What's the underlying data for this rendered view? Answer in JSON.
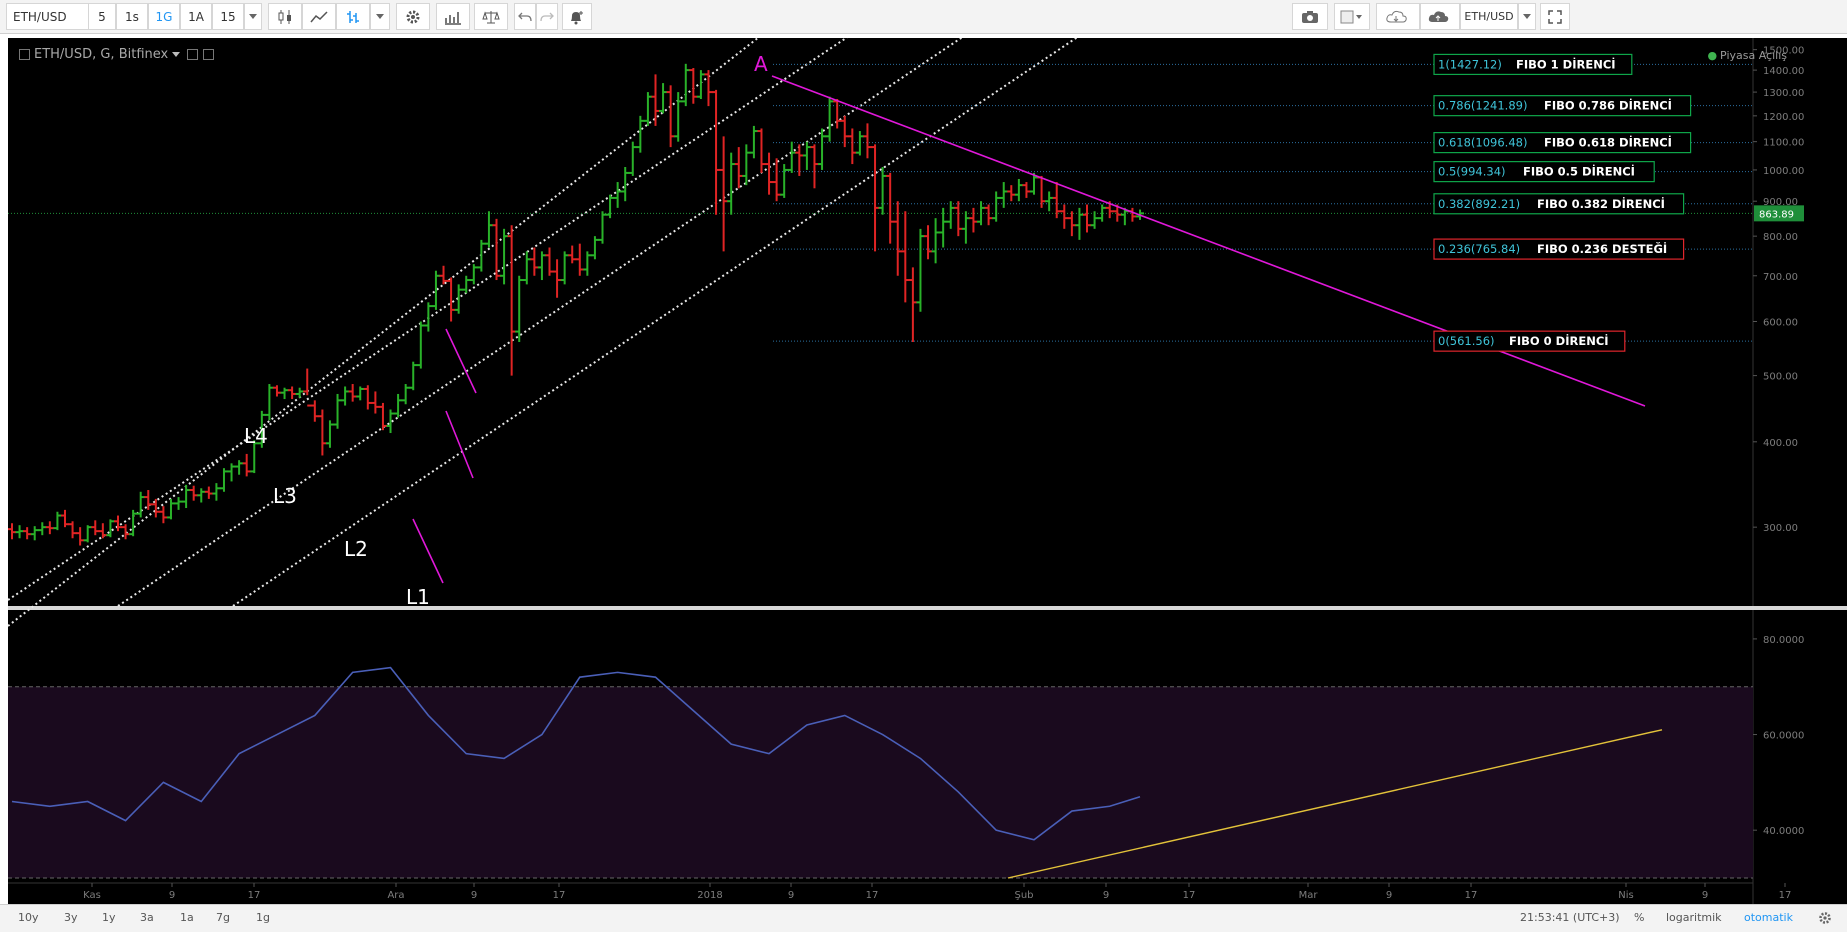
{
  "toolbar": {
    "symbol": "ETH/USD",
    "intervals": [
      "5",
      "1s",
      "1G",
      "1A",
      "15"
    ],
    "active_interval": "1G",
    "right_symbol": "ETH/USD"
  },
  "chart": {
    "legend": "ETH/USD, G, Bitfinex",
    "status": "Piyasa Açılış",
    "last_price_label": "863.89",
    "last_price": 863.89,
    "y_ticks": [
      "1500.00",
      "1400.00",
      "1300.00",
      "1200.00",
      "1100.00",
      "1000.00",
      "900.00",
      "800.00",
      "700.00",
      "600.00",
      "500.00",
      "400.00",
      "300.00"
    ],
    "rsi_ticks": [
      "80.0000",
      "60.0000",
      "40.0000"
    ],
    "x_ticks": [
      "Kas",
      "9",
      "17",
      "Ara",
      "9",
      "17",
      "2018",
      "9",
      "17",
      "Şub",
      "9",
      "17",
      "Mar",
      "9",
      "17",
      "Nis",
      "9",
      "17"
    ],
    "labels": {
      "a": "A",
      "l1": "L1",
      "l2": "L2",
      "l3": "L3",
      "l4": "L4"
    },
    "fib_levels": [
      {
        "ratio": "1",
        "value": 1427.12,
        "value_label": "1(1427.12)",
        "text": "FIBO 1 DİRENCİ",
        "color": "#0fa64a"
      },
      {
        "ratio": "0.786",
        "value": 1241.89,
        "value_label": "0.786(1241.89)",
        "text": "FIBO 0.786 DİRENCİ",
        "color": "#0fa64a"
      },
      {
        "ratio": "0.618",
        "value": 1096.48,
        "value_label": "0.618(1096.48)",
        "text": "FIBO 0.618 DİRENCİ",
        "color": "#0fa64a"
      },
      {
        "ratio": "0.5",
        "value": 994.34,
        "value_label": "0.5(994.34)",
        "text": "FIBO 0.5 DİRENCİ",
        "color": "#0fa64a"
      },
      {
        "ratio": "0.382",
        "value": 892.21,
        "value_label": "0.382(892.21)",
        "text": "FIBO 0.382 DİRENCİ",
        "color": "#0fa64a"
      },
      {
        "ratio": "0.236",
        "value": 765.84,
        "value_label": "0.236(765.84)",
        "text": "FIBO 0.236 DESTEĞİ",
        "color": "#e0262c"
      },
      {
        "ratio": "0",
        "value": 561.56,
        "value_label": "0(561.56)",
        "text": "FIBO 0 DİRENCİ",
        "color": "#e0262c"
      }
    ]
  },
  "chart_data": [
    {
      "type": "ohlc",
      "y_scale": "log",
      "ylim": [
        230,
        1560
      ],
      "x_count": 158,
      "bars": [
        [
          0,
          298,
          304,
          288,
          295
        ],
        [
          1,
          295,
          302,
          289,
          296
        ],
        [
          2,
          296,
          300,
          288,
          293
        ],
        [
          3,
          293,
          301,
          287,
          297
        ],
        [
          4,
          297,
          305,
          292,
          300
        ],
        [
          5,
          300,
          306,
          293,
          299
        ],
        [
          6,
          299,
          316,
          297,
          312
        ],
        [
          7,
          312,
          318,
          300,
          303
        ],
        [
          8,
          303,
          306,
          289,
          294
        ],
        [
          9,
          294,
          300,
          282,
          287
        ],
        [
          10,
          287,
          302,
          285,
          300
        ],
        [
          11,
          300,
          307,
          292,
          296
        ],
        [
          12,
          296,
          304,
          289,
          292
        ],
        [
          13,
          292,
          308,
          290,
          306
        ],
        [
          14,
          306,
          312,
          296,
          300
        ],
        [
          15,
          300,
          303,
          288,
          293
        ],
        [
          16,
          293,
          318,
          291,
          314
        ],
        [
          17,
          314,
          338,
          310,
          332
        ],
        [
          18,
          332,
          340,
          318,
          324
        ],
        [
          19,
          324,
          330,
          310,
          316
        ],
        [
          20,
          316,
          322,
          304,
          310
        ],
        [
          21,
          310,
          330,
          308,
          325
        ],
        [
          22,
          325,
          332,
          318,
          327
        ],
        [
          23,
          327,
          346,
          320,
          340
        ],
        [
          24,
          340,
          345,
          328,
          334
        ],
        [
          25,
          334,
          342,
          326,
          338
        ],
        [
          26,
          338,
          344,
          330,
          336
        ],
        [
          27,
          336,
          348,
          328,
          342
        ],
        [
          28,
          342,
          366,
          338,
          362
        ],
        [
          29,
          362,
          372,
          350,
          368
        ],
        [
          30,
          368,
          376,
          358,
          372
        ],
        [
          31,
          372,
          384,
          356,
          362
        ],
        [
          32,
          362,
          402,
          360,
          398
        ],
        [
          33,
          398,
          444,
          392,
          438
        ],
        [
          34,
          438,
          486,
          430,
          480
        ],
        [
          35,
          480,
          484,
          466,
          472
        ],
        [
          36,
          472,
          480,
          462,
          476
        ],
        [
          37,
          476,
          482,
          462,
          470
        ],
        [
          38,
          470,
          480,
          464,
          474
        ],
        [
          39,
          474,
          512,
          468,
          452
        ],
        [
          40,
          452,
          460,
          428,
          436
        ],
        [
          41,
          436,
          446,
          382,
          398
        ],
        [
          42,
          398,
          430,
          392,
          424
        ],
        [
          43,
          424,
          470,
          418,
          460
        ],
        [
          44,
          460,
          482,
          452,
          474
        ],
        [
          45,
          474,
          486,
          458,
          466
        ],
        [
          46,
          466,
          482,
          460,
          478
        ],
        [
          47,
          478,
          484,
          446,
          456
        ],
        [
          48,
          456,
          474,
          440,
          450
        ],
        [
          49,
          450,
          456,
          416,
          422
        ],
        [
          50,
          422,
          446,
          412,
          440
        ],
        [
          51,
          440,
          470,
          434,
          460
        ],
        [
          52,
          460,
          486,
          454,
          480
        ],
        [
          53,
          480,
          524,
          476,
          518
        ],
        [
          54,
          518,
          600,
          512,
          592
        ],
        [
          55,
          592,
          640,
          580,
          632
        ],
        [
          56,
          632,
          712,
          624,
          700
        ],
        [
          57,
          700,
          724,
          680,
          688
        ],
        [
          58,
          688,
          696,
          600,
          624
        ],
        [
          59,
          624,
          680,
          616,
          668
        ],
        [
          60,
          668,
          700,
          660,
          690
        ],
        [
          61,
          690,
          728,
          680,
          720
        ],
        [
          62,
          720,
          790,
          710,
          780
        ],
        [
          63,
          780,
          870,
          770,
          830
        ],
        [
          64,
          830,
          848,
          690,
          700
        ],
        [
          65,
          700,
          820,
          680,
          800
        ],
        [
          66,
          800,
          830,
          500,
          580
        ],
        [
          67,
          580,
          700,
          560,
          690
        ],
        [
          68,
          690,
          760,
          680,
          740
        ],
        [
          69,
          740,
          770,
          700,
          720
        ],
        [
          70,
          720,
          760,
          690,
          750
        ],
        [
          71,
          750,
          770,
          700,
          710
        ],
        [
          72,
          710,
          740,
          650,
          690
        ],
        [
          73,
          690,
          760,
          680,
          750
        ],
        [
          74,
          750,
          775,
          730,
          740
        ],
        [
          75,
          740,
          780,
          700,
          715
        ],
        [
          76,
          715,
          760,
          700,
          750
        ],
        [
          77,
          750,
          800,
          740,
          790
        ],
        [
          78,
          790,
          870,
          780,
          860
        ],
        [
          79,
          860,
          920,
          850,
          910
        ],
        [
          80,
          910,
          960,
          880,
          930
        ],
        [
          81,
          930,
          1010,
          900,
          990
        ],
        [
          82,
          990,
          1100,
          980,
          1080
        ],
        [
          83,
          1080,
          1200,
          1060,
          1180
        ],
        [
          84,
          1180,
          1300,
          1160,
          1280
        ],
        [
          85,
          1280,
          1380,
          1160,
          1220
        ],
        [
          86,
          1220,
          1340,
          1210,
          1300
        ],
        [
          87,
          1300,
          1330,
          1080,
          1120
        ],
        [
          88,
          1120,
          1300,
          1100,
          1260
        ],
        [
          89,
          1260,
          1430,
          1240,
          1400
        ],
        [
          90,
          1400,
          1410,
          1250,
          1280
        ],
        [
          91,
          1280,
          1400,
          1270,
          1380
        ],
        [
          92,
          1380,
          1400,
          1240,
          1300
        ],
        [
          93,
          1300,
          1310,
          860,
          1000
        ],
        [
          94,
          1000,
          1120,
          760,
          900
        ],
        [
          95,
          900,
          1060,
          860,
          1020
        ],
        [
          96,
          1020,
          1080,
          940,
          980
        ],
        [
          97,
          980,
          1090,
          950,
          1060
        ],
        [
          98,
          1060,
          1160,
          1040,
          1140
        ],
        [
          99,
          1140,
          1150,
          990,
          1020
        ],
        [
          100,
          1020,
          1060,
          920,
          960
        ],
        [
          101,
          960,
          1040,
          900,
          920
        ],
        [
          102,
          920,
          1020,
          910,
          1000
        ],
        [
          103,
          1000,
          1100,
          990,
          1060
        ],
        [
          104,
          1060,
          1090,
          980,
          1050
        ],
        [
          105,
          1050,
          1100,
          1000,
          1080
        ],
        [
          106,
          1080,
          1090,
          940,
          1020
        ],
        [
          107,
          1020,
          1150,
          1000,
          1120
        ],
        [
          108,
          1120,
          1280,
          1100,
          1260
        ],
        [
          109,
          1260,
          1270,
          1150,
          1180
        ],
        [
          110,
          1180,
          1200,
          1080,
          1120
        ],
        [
          111,
          1120,
          1150,
          1020,
          1060
        ],
        [
          112,
          1060,
          1140,
          1050,
          1120
        ],
        [
          113,
          1120,
          1170,
          1040,
          1080
        ],
        [
          114,
          1080,
          1090,
          760,
          880
        ],
        [
          115,
          880,
          1010,
          860,
          980
        ],
        [
          116,
          980,
          990,
          780,
          840
        ],
        [
          117,
          840,
          900,
          700,
          760
        ],
        [
          118,
          760,
          870,
          640,
          690
        ],
        [
          119,
          690,
          720,
          560,
          640
        ],
        [
          120,
          640,
          820,
          620,
          800
        ],
        [
          121,
          800,
          830,
          740,
          760
        ],
        [
          122,
          760,
          850,
          730,
          810
        ],
        [
          123,
          810,
          880,
          770,
          840
        ],
        [
          124,
          840,
          900,
          820,
          880
        ],
        [
          125,
          880,
          900,
          800,
          820
        ],
        [
          126,
          820,
          870,
          780,
          850
        ],
        [
          127,
          850,
          880,
          810,
          840
        ],
        [
          128,
          840,
          900,
          830,
          880
        ],
        [
          129,
          880,
          890,
          830,
          850
        ],
        [
          130,
          850,
          930,
          840,
          910
        ],
        [
          131,
          910,
          960,
          880,
          930
        ],
        [
          132,
          930,
          950,
          900,
          920
        ],
        [
          133,
          920,
          970,
          900,
          950
        ],
        [
          134,
          950,
          960,
          910,
          930
        ],
        [
          135,
          930,
          990,
          920,
          975
        ],
        [
          136,
          975,
          980,
          880,
          900
        ],
        [
          137,
          900,
          930,
          870,
          910
        ],
        [
          138,
          910,
          960,
          850,
          870
        ],
        [
          139,
          870,
          890,
          820,
          850
        ],
        [
          140,
          850,
          870,
          800,
          830
        ],
        [
          141,
          830,
          880,
          790,
          860
        ],
        [
          142,
          860,
          890,
          810,
          830
        ],
        [
          143,
          830,
          870,
          820,
          850
        ],
        [
          144,
          850,
          890,
          840,
          880
        ],
        [
          145,
          880,
          900,
          850,
          870
        ],
        [
          146,
          870,
          890,
          840,
          860
        ],
        [
          147,
          860,
          880,
          830,
          870
        ],
        [
          148,
          870,
          880,
          840,
          855
        ],
        [
          149,
          855,
          875,
          845,
          864
        ]
      ]
    },
    {
      "type": "line",
      "name": "RSI",
      "ylim": [
        30,
        85
      ],
      "x": [
        0,
        5,
        10,
        15,
        20,
        25,
        30,
        35,
        40,
        45,
        50,
        55,
        60,
        65,
        70,
        75,
        80,
        85,
        90,
        95,
        100,
        105,
        110,
        115,
        120,
        125,
        130,
        135,
        140,
        145,
        149
      ],
      "values": [
        46,
        45,
        46,
        42,
        50,
        46,
        56,
        60,
        64,
        73,
        74,
        64,
        56,
        55,
        60,
        72,
        73,
        72,
        65,
        58,
        56,
        62,
        64,
        60,
        55,
        48,
        40,
        38,
        44,
        45,
        47
      ]
    }
  ]
}
